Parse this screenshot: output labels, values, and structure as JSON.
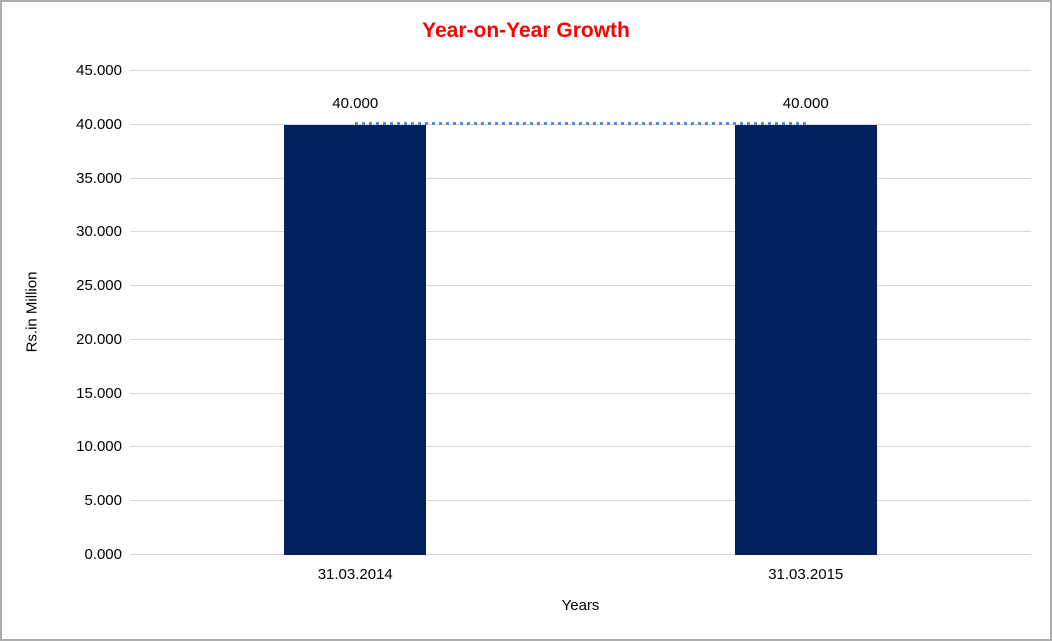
{
  "chart_data": {
    "type": "bar",
    "title": "Year-on-Year Growth",
    "title_color": "#ff0000",
    "xlabel": "Years",
    "ylabel": "Rs.in Million",
    "categories": [
      "31.03.2014",
      "31.03.2015"
    ],
    "series": [
      {
        "name": "Rs.in Million",
        "type": "bar",
        "color": "#02215e",
        "values": [
          40000,
          40000
        ],
        "data_labels": [
          "40.000",
          "40.000"
        ]
      },
      {
        "name": "connector",
        "type": "line",
        "line_style": "dotted",
        "color": "#5b8dc8",
        "values": [
          40000,
          40000
        ]
      }
    ],
    "ylim": [
      0,
      45000
    ],
    "yticks": [
      {
        "value": 0,
        "label": "0.000"
      },
      {
        "value": 5000,
        "label": "5.000"
      },
      {
        "value": 10000,
        "label": "10.000"
      },
      {
        "value": 15000,
        "label": "15.000"
      },
      {
        "value": 20000,
        "label": "20.000"
      },
      {
        "value": 25000,
        "label": "25.000"
      },
      {
        "value": 30000,
        "label": "30.000"
      },
      {
        "value": 35000,
        "label": "35.000"
      },
      {
        "value": 40000,
        "label": "40.000"
      },
      {
        "value": 45000,
        "label": "45.000"
      }
    ],
    "grid": "horizontal",
    "gridline_color": "#d9d9d9",
    "legend": "none",
    "background_color": "#ffffff",
    "border_color": "#acacac"
  }
}
